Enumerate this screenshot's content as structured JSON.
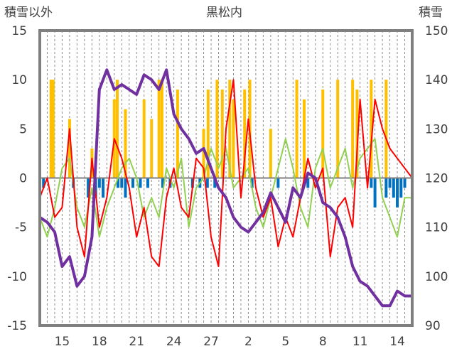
{
  "chart_data": {
    "type": "line",
    "title": "黒松内",
    "left_axis_title": "積雪以外",
    "right_axis_title": "積雪",
    "y_left": {
      "min": -15,
      "max": 15,
      "ticks": [
        15,
        10,
        5,
        0,
        -5,
        -10,
        -15
      ]
    },
    "y_right": {
      "min": 90,
      "max": 150,
      "ticks": [
        150,
        140,
        130,
        120,
        110,
        100,
        90
      ]
    },
    "x_range": [
      0,
      50
    ],
    "x_ticks": [
      {
        "x": 3,
        "label": "15"
      },
      {
        "x": 8,
        "label": "18"
      },
      {
        "x": 13,
        "label": "21"
      },
      {
        "x": 18,
        "label": "24"
      },
      {
        "x": 23,
        "label": "27"
      },
      {
        "x": 28,
        "label": "2"
      },
      {
        "x": 33,
        "label": "5"
      },
      {
        "x": 38,
        "label": "8"
      },
      {
        "x": 43,
        "label": "11"
      },
      {
        "x": 48,
        "label": "14"
      }
    ],
    "grid": "vertical dashed at each day, horizontal zero line",
    "series": [
      {
        "color": "#ffc000",
        "kind": "bar",
        "axis": "left",
        "points": [
          [
            1.5,
            10
          ],
          [
            1.8,
            10
          ],
          [
            4.0,
            6
          ],
          [
            7.0,
            3
          ],
          [
            10.0,
            8
          ],
          [
            10.4,
            10
          ],
          [
            11.5,
            7
          ],
          [
            14.0,
            8
          ],
          [
            15.0,
            6
          ],
          [
            16.0,
            10
          ],
          [
            16.4,
            10
          ],
          [
            18.5,
            9
          ],
          [
            22.0,
            5
          ],
          [
            22.6,
            9
          ],
          [
            23.8,
            10
          ],
          [
            24.5,
            9
          ],
          [
            25.5,
            10
          ],
          [
            26.0,
            8
          ],
          [
            27.5,
            9
          ],
          [
            28.2,
            10
          ],
          [
            31.0,
            5
          ],
          [
            34.5,
            10
          ],
          [
            35.5,
            8
          ],
          [
            38.0,
            9
          ],
          [
            40.0,
            10
          ],
          [
            42.0,
            10
          ],
          [
            42.6,
            9
          ],
          [
            44.5,
            10
          ],
          [
            46.5,
            10
          ]
        ]
      },
      {
        "color": "#0070c0",
        "kind": "bar",
        "axis": "left",
        "points": [
          [
            0.5,
            -1
          ],
          [
            4.5,
            -1
          ],
          [
            6.5,
            -2
          ],
          [
            7.5,
            -2
          ],
          [
            8.0,
            -1
          ],
          [
            8.5,
            -2
          ],
          [
            10.5,
            -1
          ],
          [
            11.0,
            -1
          ],
          [
            11.5,
            -2
          ],
          [
            12.5,
            -1
          ],
          [
            13.5,
            -1
          ],
          [
            14.5,
            -1
          ],
          [
            16.5,
            -1
          ],
          [
            17.5,
            -1
          ],
          [
            20.5,
            -1
          ],
          [
            21.5,
            -1
          ],
          [
            22.5,
            -1
          ],
          [
            23.5,
            -1
          ],
          [
            28.5,
            -1
          ],
          [
            32.0,
            -1
          ],
          [
            36.0,
            -1
          ],
          [
            44.5,
            -1
          ],
          [
            45.0,
            -3
          ],
          [
            46.5,
            -2
          ],
          [
            47.0,
            -1
          ],
          [
            47.5,
            -2
          ],
          [
            48.0,
            -3
          ],
          [
            48.5,
            -2
          ],
          [
            49.0,
            -1
          ]
        ]
      },
      {
        "color": "#92d050",
        "kind": "line",
        "axis": "left",
        "points": [
          [
            0,
            -4
          ],
          [
            1,
            -6
          ],
          [
            2,
            -3
          ],
          [
            3,
            1
          ],
          [
            4,
            2
          ],
          [
            5,
            -3
          ],
          [
            6,
            -5
          ],
          [
            7,
            -1
          ],
          [
            8,
            -6
          ],
          [
            9,
            -3
          ],
          [
            10,
            -1
          ],
          [
            11,
            1
          ],
          [
            12,
            2
          ],
          [
            13,
            0
          ],
          [
            14,
            -4
          ],
          [
            15,
            -2
          ],
          [
            16,
            -4
          ],
          [
            17,
            1
          ],
          [
            18,
            -1
          ],
          [
            19,
            2
          ],
          [
            20,
            -5
          ],
          [
            21,
            -1
          ],
          [
            22,
            0
          ],
          [
            23,
            3
          ],
          [
            24,
            1
          ],
          [
            25,
            3
          ],
          [
            26,
            -1
          ],
          [
            27,
            0
          ],
          [
            28,
            1
          ],
          [
            29,
            -3
          ],
          [
            30,
            -5
          ],
          [
            31,
            -2
          ],
          [
            32,
            1
          ],
          [
            33,
            4
          ],
          [
            34,
            1
          ],
          [
            35,
            -3
          ],
          [
            36,
            -5
          ],
          [
            37,
            1
          ],
          [
            38,
            3
          ],
          [
            39,
            -1
          ],
          [
            40,
            1
          ],
          [
            41,
            3
          ],
          [
            42,
            -1
          ],
          [
            43,
            2
          ],
          [
            44,
            3
          ],
          [
            45,
            4
          ],
          [
            46,
            -2
          ],
          [
            47,
            -4
          ],
          [
            48,
            -6
          ],
          [
            49,
            -2
          ],
          [
            50,
            -2
          ]
        ]
      },
      {
        "color": "#ff0000",
        "kind": "line",
        "axis": "left",
        "points": [
          [
            0,
            -2
          ],
          [
            1,
            0
          ],
          [
            2,
            -4
          ],
          [
            3,
            -3
          ],
          [
            4,
            5
          ],
          [
            5,
            -5
          ],
          [
            6,
            -8
          ],
          [
            7,
            2
          ],
          [
            8,
            -5
          ],
          [
            9,
            -2
          ],
          [
            10,
            4
          ],
          [
            11,
            2
          ],
          [
            12,
            -1
          ],
          [
            13,
            -6
          ],
          [
            14,
            -3
          ],
          [
            15,
            -8
          ],
          [
            16,
            -9
          ],
          [
            17,
            -2
          ],
          [
            18,
            1
          ],
          [
            19,
            -3
          ],
          [
            20,
            -4
          ],
          [
            21,
            2
          ],
          [
            22,
            1
          ],
          [
            23,
            -6
          ],
          [
            24,
            -9
          ],
          [
            25,
            5
          ],
          [
            26,
            10
          ],
          [
            27,
            -2
          ],
          [
            28,
            6
          ],
          [
            29,
            -1
          ],
          [
            30,
            -4
          ],
          [
            31,
            -2
          ],
          [
            32,
            -7
          ],
          [
            33,
            -4
          ],
          [
            34,
            -6
          ],
          [
            35,
            -2
          ],
          [
            36,
            2
          ],
          [
            37,
            -1
          ],
          [
            38,
            1
          ],
          [
            39,
            -8
          ],
          [
            40,
            -3
          ],
          [
            41,
            -2
          ],
          [
            42,
            -5
          ],
          [
            43,
            8
          ],
          [
            44,
            -1
          ],
          [
            45,
            8
          ],
          [
            46,
            5
          ],
          [
            47,
            3
          ],
          [
            48,
            2
          ],
          [
            49,
            1
          ],
          [
            50,
            0
          ]
        ]
      },
      {
        "color": "#7030a0",
        "kind": "line",
        "axis": "right",
        "points": [
          [
            0,
            112
          ],
          [
            1,
            111
          ],
          [
            2,
            109
          ],
          [
            3,
            102
          ],
          [
            4,
            104
          ],
          [
            5,
            98
          ],
          [
            6,
            100
          ],
          [
            7,
            108
          ],
          [
            8,
            138
          ],
          [
            9,
            142
          ],
          [
            10,
            138
          ],
          [
            11,
            139
          ],
          [
            12,
            138
          ],
          [
            13,
            137
          ],
          [
            14,
            141
          ],
          [
            15,
            140
          ],
          [
            16,
            138
          ],
          [
            17,
            142
          ],
          [
            18,
            133
          ],
          [
            19,
            130
          ],
          [
            20,
            128
          ],
          [
            21,
            125
          ],
          [
            22,
            126
          ],
          [
            23,
            122
          ],
          [
            24,
            118
          ],
          [
            25,
            116
          ],
          [
            26,
            112
          ],
          [
            27,
            110
          ],
          [
            28,
            109
          ],
          [
            29,
            111
          ],
          [
            30,
            113
          ],
          [
            31,
            117
          ],
          [
            32,
            114
          ],
          [
            33,
            111
          ],
          [
            34,
            118
          ],
          [
            35,
            116
          ],
          [
            36,
            121
          ],
          [
            37,
            120
          ],
          [
            38,
            115
          ],
          [
            39,
            114
          ],
          [
            40,
            112
          ],
          [
            41,
            108
          ],
          [
            42,
            102
          ],
          [
            43,
            99
          ],
          [
            44,
            98
          ],
          [
            45,
            96
          ],
          [
            46,
            94
          ],
          [
            47,
            94
          ],
          [
            48,
            97
          ],
          [
            49,
            96
          ],
          [
            50,
            96
          ]
        ]
      }
    ]
  }
}
